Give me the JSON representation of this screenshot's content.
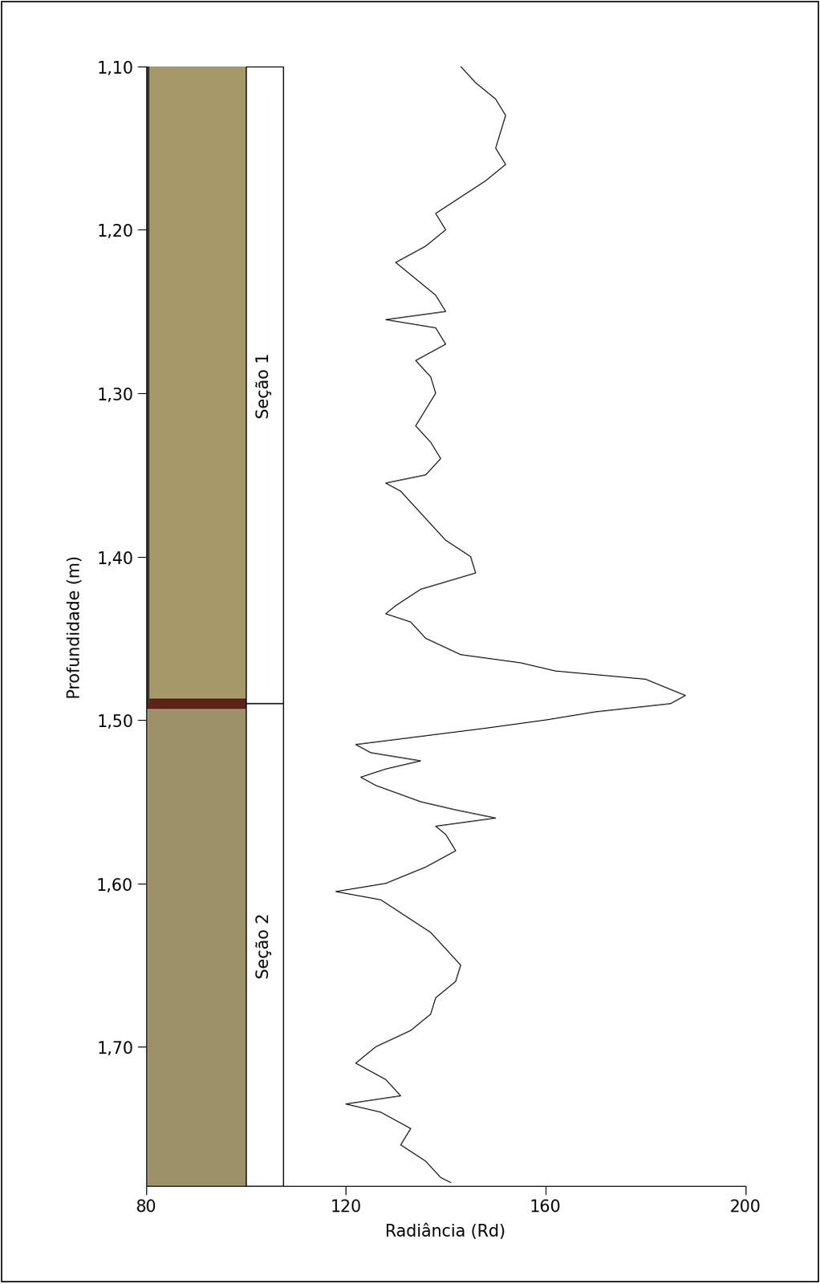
{
  "chart_data": {
    "type": "line",
    "xlabel": "Radiância (Rd)",
    "ylabel": "Profundidade (m)",
    "xlim": [
      80,
      200
    ],
    "xticks": [
      80,
      120,
      160,
      200
    ],
    "ylim": [
      1.785,
      1.1
    ],
    "yticks": [
      {
        "value": 1.1,
        "label": "1,10"
      },
      {
        "value": 1.2,
        "label": "1,20"
      },
      {
        "value": 1.3,
        "label": "1,30"
      },
      {
        "value": 1.4,
        "label": "1,40"
      },
      {
        "value": 1.5,
        "label": "1,50"
      },
      {
        "value": 1.6,
        "label": "1,60"
      },
      {
        "value": 1.7,
        "label": "1,70"
      }
    ],
    "color": "#000000",
    "grid": false,
    "sections": [
      {
        "label": "Seção 1",
        "top": 1.1,
        "bottom": 1.49
      },
      {
        "label": "Seção 2",
        "top": 1.49,
        "bottom": 1.785
      }
    ],
    "x": [
      143,
      146,
      150,
      152,
      151,
      150,
      152,
      148,
      143,
      138,
      140,
      136,
      130,
      134,
      138,
      140,
      128,
      138,
      140,
      134,
      137,
      138,
      136,
      134,
      137,
      139,
      136,
      128,
      131,
      134,
      137,
      140,
      145,
      146,
      135,
      130,
      128,
      133,
      136,
      143,
      155,
      162,
      180,
      184,
      188,
      185,
      170,
      160,
      148,
      135,
      122,
      125,
      135,
      128,
      123,
      126,
      135,
      142,
      150,
      138,
      140,
      142,
      136,
      128,
      118,
      127,
      132,
      137,
      140,
      143,
      142,
      138,
      137,
      133,
      126,
      122,
      128,
      131,
      120,
      127,
      133,
      131,
      136,
      139,
      141
    ],
    "y": [
      1.1,
      1.11,
      1.12,
      1.13,
      1.14,
      1.15,
      1.16,
      1.17,
      1.18,
      1.19,
      1.2,
      1.21,
      1.22,
      1.23,
      1.24,
      1.25,
      1.255,
      1.26,
      1.27,
      1.28,
      1.29,
      1.3,
      1.31,
      1.32,
      1.33,
      1.34,
      1.35,
      1.355,
      1.36,
      1.37,
      1.38,
      1.39,
      1.4,
      1.41,
      1.42,
      1.43,
      1.435,
      1.44,
      1.45,
      1.46,
      1.465,
      1.47,
      1.475,
      1.48,
      1.485,
      1.49,
      1.495,
      1.5,
      1.505,
      1.51,
      1.515,
      1.52,
      1.525,
      1.53,
      1.535,
      1.54,
      1.55,
      1.555,
      1.56,
      1.565,
      1.57,
      1.58,
      1.59,
      1.6,
      1.605,
      1.61,
      1.62,
      1.63,
      1.64,
      1.65,
      1.66,
      1.67,
      1.68,
      1.69,
      1.7,
      1.71,
      1.72,
      1.73,
      1.735,
      1.74,
      1.75,
      1.76,
      1.77,
      1.78,
      1.783
    ]
  }
}
